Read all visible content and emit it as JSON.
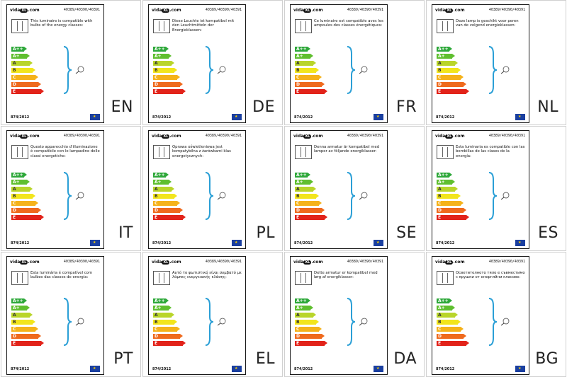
{
  "brand": {
    "name": "vida",
    "badge": "XL",
    "suffix": ".com"
  },
  "codes": "40389/40390/40391",
  "regulation": "874/2012",
  "eu_flag": "eu-flag-icon",
  "energy_classes": [
    {
      "label": "A++",
      "color": "#2ea83a",
      "width": 20
    },
    {
      "label": "A+",
      "color": "#5fbf2f",
      "width": 24
    },
    {
      "label": "A",
      "color": "#b9d52a",
      "width": 28
    },
    {
      "label": "B",
      "color": "#f2e51c",
      "width": 32
    },
    {
      "label": "C",
      "color": "#f5b21a",
      "width": 36
    },
    {
      "label": "D",
      "color": "#ef6a1d",
      "width": 40
    },
    {
      "label": "E",
      "color": "#e2231a",
      "width": 44
    }
  ],
  "accent_brace": "#2a9fd6",
  "panels": [
    {
      "lang": "EN",
      "text": "This luminaire is compatible with bulbs of the energy classes:"
    },
    {
      "lang": "DE",
      "text": "Diese Leuchte ist kompatibel mit den Leuchtmitteln der Energieklassen:"
    },
    {
      "lang": "FR",
      "text": "Ce luminaire est compatible avec les ampoules des classes énergétiques:"
    },
    {
      "lang": "NL",
      "text": "Deze lamp is geschikt voor peren van de volgend energieklassen:"
    },
    {
      "lang": "IT",
      "text": "Questo apparecchio d'illuminazione è compatibile con le lampadine delle classi energetiche:"
    },
    {
      "lang": "PL",
      "text": "Oprawa oświetleniowa jest kompatybilna z żarówkami klas energetycznych:"
    },
    {
      "lang": "SE",
      "text": "Denna armatur är kompatibel med lampor av följande energiklasser:"
    },
    {
      "lang": "ES",
      "text": "Esta luminaria es compatible con las bombillas de las clases de la energía:"
    },
    {
      "lang": "PT",
      "text": "Esta luminária é compatível com bulbos das classes de energia:"
    },
    {
      "lang": "EL",
      "text": "Αυτό το φωτιστικό είναι συμβατό με λάμπες ενεργειακής κλάσης:"
    },
    {
      "lang": "DA",
      "text": "Dette armatur er kompatibel med lørg af energiklasser:"
    },
    {
      "lang": "BG",
      "text": "Осветителното тяло е съвместимо с крушки от енергийни класове:"
    }
  ]
}
